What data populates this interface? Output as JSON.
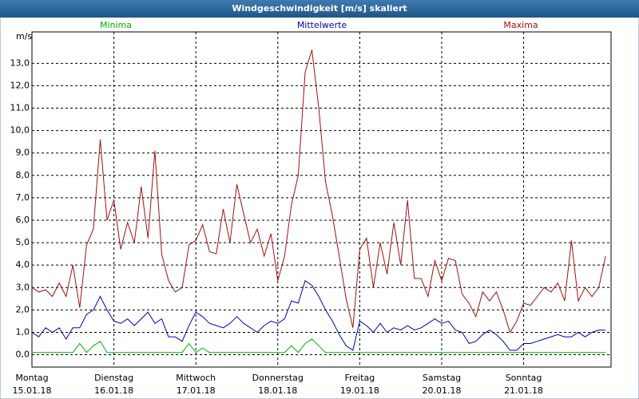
{
  "chart_data": {
    "type": "line",
    "title": "Windgeschwindigkeit [m/s] skaliert",
    "y_label": "m/s",
    "x": [
      0,
      2,
      4,
      6,
      8,
      10,
      12,
      14,
      16,
      18,
      20,
      22,
      24,
      26,
      28,
      30,
      32,
      34,
      36,
      38,
      40,
      42,
      44,
      46,
      48,
      50,
      52,
      54,
      56,
      58,
      60,
      62,
      64,
      66,
      68,
      70,
      72,
      74,
      76,
      78,
      80,
      82,
      84,
      86,
      88,
      90,
      92,
      94,
      96,
      98,
      100,
      102,
      104,
      106,
      108,
      110,
      112,
      114,
      116,
      118,
      120,
      122,
      124,
      126,
      128,
      130,
      132,
      134,
      136,
      138,
      140,
      142,
      144,
      146,
      148,
      150,
      152,
      154,
      156,
      158,
      160,
      162,
      164,
      166,
      168
    ],
    "xlim": [
      0,
      169.6
    ],
    "xticks": [
      {
        "value": 0,
        "label": "Montag",
        "date": "15.01.18"
      },
      {
        "value": 24,
        "label": "Dienstag",
        "date": "16.01.18"
      },
      {
        "value": 48,
        "label": "Mittwoch",
        "date": "17.01.18"
      },
      {
        "value": 72,
        "label": "Donnerstag",
        "date": "18.01.18"
      },
      {
        "value": 96,
        "label": "Freitag",
        "date": "19.01.18"
      },
      {
        "value": 120,
        "label": "Samstag",
        "date": "20.01.18"
      },
      {
        "value": 144,
        "label": "Sonntag",
        "date": "21.01.18"
      }
    ],
    "ylim": [
      -0.55,
      14.4
    ],
    "yticks": [
      {
        "value": 0,
        "label": "0,0"
      },
      {
        "value": 1,
        "label": "1,0"
      },
      {
        "value": 2,
        "label": "2,0"
      },
      {
        "value": 3,
        "label": "3,0"
      },
      {
        "value": 4,
        "label": "4,0"
      },
      {
        "value": 5,
        "label": "5,0"
      },
      {
        "value": 6,
        "label": "6,0"
      },
      {
        "value": 7,
        "label": "7,0"
      },
      {
        "value": 8,
        "label": "8,0"
      },
      {
        "value": 9,
        "label": "9,0"
      },
      {
        "value": 10,
        "label": "10,0"
      },
      {
        "value": 11,
        "label": "11,0"
      },
      {
        "value": 12,
        "label": "12,0"
      },
      {
        "value": 13,
        "label": "13,0"
      }
    ],
    "grid": true,
    "series": [
      {
        "name": "Minima",
        "color": "#00b000",
        "values": [
          0.1,
          0.1,
          0.1,
          0.1,
          0.1,
          0.1,
          0.1,
          0.5,
          0.1,
          0.4,
          0.6,
          0.1,
          0.1,
          0.1,
          0.1,
          0.1,
          0.1,
          0.1,
          0.1,
          0.1,
          0.1,
          0.1,
          0.1,
          0.5,
          0.1,
          0.3,
          0.1,
          0.1,
          0.1,
          0.1,
          0.1,
          0.1,
          0.1,
          0.1,
          0.1,
          0.1,
          0.1,
          0.1,
          0.4,
          0.1,
          0.5,
          0.7,
          0.4,
          0.1,
          0.1,
          0.1,
          0.1,
          0.1,
          0.1,
          0.1,
          0.1,
          0.1,
          0.1,
          0.1,
          0.1,
          0.1,
          0.1,
          0.1,
          0.1,
          0.1,
          0.1,
          0.1,
          0.1,
          0.1,
          0.1,
          0.1,
          0.1,
          0.1,
          0.1,
          0.1,
          0.1,
          0.1,
          0.1,
          0.1,
          0.1,
          0.1,
          0.1,
          0.1,
          0.1,
          0.1,
          0.1,
          0.1,
          0.1,
          0.1,
          0.1
        ]
      },
      {
        "name": "Mittelwerte",
        "color": "#0000c0",
        "values": [
          1.0,
          0.8,
          1.2,
          1.0,
          1.2,
          0.7,
          1.2,
          1.2,
          1.8,
          2.0,
          2.6,
          2.0,
          1.5,
          1.4,
          1.6,
          1.3,
          1.6,
          1.9,
          1.4,
          1.6,
          0.8,
          0.8,
          0.6,
          1.3,
          1.9,
          1.7,
          1.4,
          1.3,
          1.2,
          1.4,
          1.7,
          1.4,
          1.2,
          1.0,
          1.3,
          1.5,
          1.4,
          1.6,
          2.4,
          2.3,
          3.3,
          3.1,
          2.6,
          2.0,
          1.5,
          0.9,
          0.4,
          0.2,
          1.5,
          1.3,
          1.0,
          1.4,
          1.0,
          1.2,
          1.1,
          1.3,
          1.1,
          1.2,
          1.4,
          1.6,
          1.4,
          1.5,
          1.1,
          1.0,
          0.5,
          0.6,
          0.9,
          1.1,
          0.9,
          0.6,
          0.2,
          0.2,
          0.5,
          0.5,
          0.6,
          0.7,
          0.8,
          0.9,
          0.8,
          0.8,
          1.0,
          0.8,
          1.0,
          1.1,
          1.1
        ]
      },
      {
        "name": "Maxima",
        "color": "#a01010",
        "values": [
          3.0,
          2.8,
          2.9,
          2.6,
          3.2,
          2.6,
          4.0,
          2.1,
          4.9,
          5.6,
          9.6,
          6.0,
          6.9,
          4.7,
          5.9,
          5.0,
          7.5,
          5.2,
          9.1,
          4.5,
          3.3,
          2.8,
          3.0,
          4.9,
          5.1,
          5.8,
          4.6,
          4.5,
          6.5,
          5.0,
          7.6,
          6.3,
          5.0,
          5.6,
          4.4,
          5.4,
          3.3,
          4.4,
          6.7,
          8.0,
          12.6,
          13.6,
          11.0,
          7.7,
          6.2,
          4.4,
          2.5,
          1.2,
          4.7,
          5.2,
          3.0,
          5.0,
          3.6,
          5.9,
          4.0,
          6.9,
          3.4,
          3.4,
          2.6,
          4.2,
          3.3,
          4.3,
          4.2,
          2.7,
          2.3,
          1.7,
          2.8,
          2.4,
          2.8,
          2.0,
          1.0,
          1.5,
          2.3,
          2.2,
          2.6,
          3.0,
          2.8,
          3.2,
          2.4,
          5.1,
          2.4,
          3.0,
          2.6,
          3.0,
          4.4
        ]
      }
    ]
  }
}
